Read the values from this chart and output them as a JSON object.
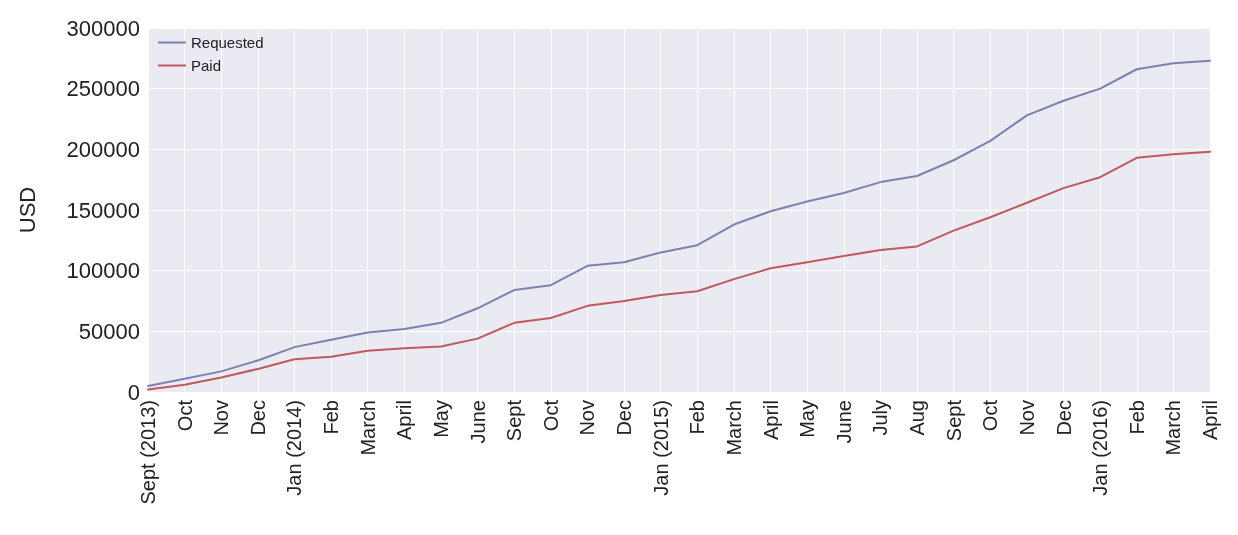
{
  "chart_data": {
    "type": "line",
    "ylabel": "USD",
    "categories": [
      "Sept (2013)",
      "Oct",
      "Nov",
      "Dec",
      "Jan (2014)",
      "Feb",
      "March",
      "April",
      "May",
      "June",
      "Sept",
      "Oct",
      "Nov",
      "Dec",
      "Jan (2015)",
      "Feb",
      "March",
      "April",
      "May",
      "June",
      "July",
      "Aug",
      "Sept",
      "Oct",
      "Nov",
      "Dec",
      "Jan (2016)",
      "Feb",
      "March",
      "April"
    ],
    "series": [
      {
        "name": "Requested",
        "color": "#8080b0",
        "values": [
          5000,
          11000,
          17000,
          26000,
          37000,
          43000,
          49000,
          52000,
          57000,
          69000,
          84000,
          88000,
          104000,
          107000,
          115000,
          121000,
          138000,
          149000,
          157000,
          164000,
          173000,
          178000,
          191000,
          207000,
          228000,
          240000,
          250000,
          266000,
          271000,
          273000
        ]
      },
      {
        "name": "Paid",
        "color": "#c0595c",
        "values": [
          2000,
          6000,
          12000,
          19000,
          27000,
          29000,
          34000,
          36000,
          37500,
          44000,
          57000,
          61000,
          71000,
          75000,
          80000,
          83000,
          93000,
          102000,
          107000,
          112000,
          117000,
          120000,
          133000,
          144000,
          156000,
          168000,
          177000,
          193000,
          196000,
          198000
        ]
      }
    ],
    "ylim": [
      0,
      300000
    ],
    "yticks": [
      0,
      50000,
      100000,
      150000,
      200000,
      250000,
      300000
    ],
    "grid": true,
    "legend": "top left",
    "marker": "none",
    "line_style": "solid"
  }
}
